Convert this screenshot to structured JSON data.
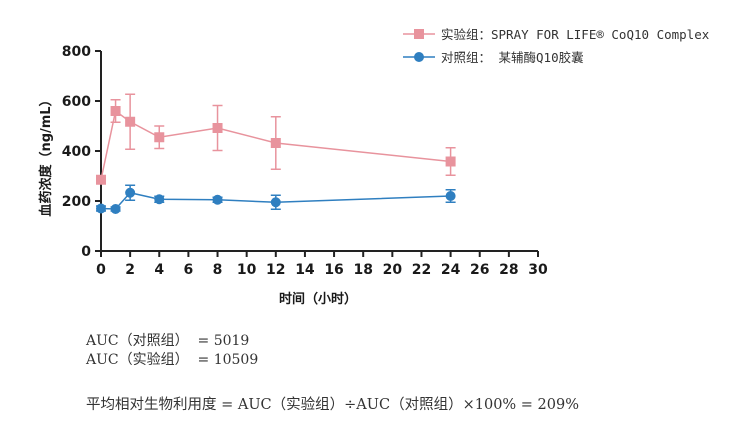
{
  "chart_data": {
    "type": "line",
    "xlabel": "时间（小时）",
    "ylabel": "血药浓度（ng/mL）",
    "xlim": [
      0,
      30
    ],
    "ylim": [
      0,
      800
    ],
    "xticks": [
      0,
      2,
      4,
      6,
      8,
      10,
      12,
      14,
      16,
      18,
      20,
      22,
      24,
      26,
      28,
      30
    ],
    "yticks": [
      0,
      200,
      400,
      600,
      800
    ],
    "grid": false,
    "legend_position": "top-right",
    "series": [
      {
        "name": "实验组：SPRAY FOR LIFE® CoQ10 Complex",
        "color": "#e8939d",
        "marker": "square",
        "x": [
          0,
          1,
          2,
          4,
          8,
          12,
          24
        ],
        "y": [
          285,
          560,
          517,
          455,
          492,
          432,
          358
        ],
        "err": [
          0,
          45,
          110,
          45,
          90,
          105,
          55
        ]
      },
      {
        "name": "对照组：    某辅酶Q10胶囊",
        "color": "#2f7fc0",
        "marker": "circle",
        "x": [
          0,
          1,
          2,
          4,
          8,
          12,
          24
        ],
        "y": [
          170,
          168,
          233,
          207,
          205,
          195,
          220
        ],
        "err": [
          10,
          8,
          30,
          12,
          10,
          28,
          25
        ]
      }
    ]
  },
  "stats": {
    "auc_control": "AUC（对照组）  = 5019",
    "auc_experiment": "AUC（实验组）  = 10509",
    "bioavailability": "平均相对生物利用度 = AUC（实验组）÷AUC（对照组）×100% = 209%"
  }
}
